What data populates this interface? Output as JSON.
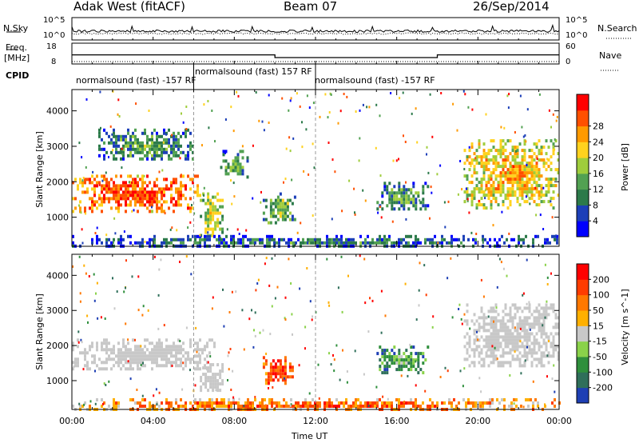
{
  "header": {
    "station": "Adak West (fitACF)",
    "beam": "Beam 07",
    "date": "26/Sep/2014"
  },
  "top_panel": {
    "left_label": "N.Sky",
    "right_label": "N.Search",
    "left_ticks": [
      "10^5",
      "10^0"
    ],
    "right_ticks": [
      "10^5",
      "10^0"
    ]
  },
  "freq_panel": {
    "left_label_1": "Freq.",
    "left_label_2": "[MHz]",
    "left_ticks": [
      "18",
      "8"
    ],
    "right_label": "Nave",
    "right_ticks": [
      "60",
      "0"
    ],
    "cpid_label": "CPID",
    "cpid_segments": [
      {
        "label": "normalsound (fast) -157 RF",
        "start": 0,
        "end": 6
      },
      {
        "label": "normalsound (fast) 157 RF",
        "start": 6,
        "end": 12
      },
      {
        "label": "normalsound (fast) -157 RF",
        "start": 12,
        "end": 24
      }
    ],
    "freq_series": {
      "x": [
        0,
        10,
        10,
        18,
        18,
        24
      ],
      "y": [
        12.2,
        12.2,
        10.5,
        10.5,
        12.2,
        12.2
      ]
    }
  },
  "chart_data": [
    {
      "type": "heatmap",
      "name": "power",
      "ylabel": "Slant Range [km]",
      "xlim": [
        0,
        24
      ],
      "ylim": [
        180,
        4600
      ],
      "yticks": [
        "1000",
        "2000",
        "3000",
        "4000"
      ],
      "colorbar_label": "Power [dB]",
      "colorbar_ticks": [
        "4",
        "8",
        "12",
        "16",
        "20",
        "24",
        "28"
      ],
      "colors": [
        "#0000ff",
        "#1c3fb8",
        "#2c7a4a",
        "#52a152",
        "#9fcd3c",
        "#ffd21e",
        "#ff9a00",
        "#ff5000",
        "#ff0000"
      ],
      "regions": [
        {
          "x0": 0,
          "x1": 6.3,
          "y0": 1200,
          "y1": 2200,
          "level": 0.8
        },
        {
          "x0": 6.3,
          "x1": 7.4,
          "y0": 500,
          "y1": 1700,
          "level": 0.5
        },
        {
          "x0": 7.3,
          "x1": 8.6,
          "y0": 2100,
          "y1": 2900,
          "level": 0.35
        },
        {
          "x0": 1.3,
          "x1": 6,
          "y0": 2600,
          "y1": 3500,
          "level": 0.3
        },
        {
          "x0": 9.4,
          "x1": 11,
          "y0": 800,
          "y1": 1700,
          "level": 0.4
        },
        {
          "x0": 15,
          "x1": 17.5,
          "y0": 1200,
          "y1": 2000,
          "level": 0.3
        },
        {
          "x0": 19.3,
          "x1": 24,
          "y0": 1300,
          "y1": 3200,
          "level": 0.6
        },
        {
          "x0": 0,
          "x1": 24,
          "y0": 180,
          "y1": 500,
          "level": 0.2
        }
      ]
    },
    {
      "type": "heatmap",
      "name": "velocity",
      "xlabel": "Time UT",
      "ylabel": "Slant Range [km]",
      "xlim": [
        0,
        24
      ],
      "ylim": [
        180,
        4600
      ],
      "xticks": [
        "00:00",
        "04:00",
        "08:00",
        "12:00",
        "16:00",
        "20:00",
        "00:00"
      ],
      "yticks": [
        "1000",
        "2000",
        "3000",
        "4000"
      ],
      "colorbar_label": "Velocity [m s^-1]",
      "colorbar_ticks": [
        "200",
        "100",
        "50",
        "15",
        "-15",
        "-50",
        "-100",
        "-200"
      ],
      "colors": [
        "#1e3fb4",
        "#2f6f5a",
        "#2f8f3c",
        "#8ad24a",
        "#c8c8c8",
        "#ffb000",
        "#ff7800",
        "#ff3c00",
        "#ff0000"
      ],
      "regions": [
        {
          "x0": 0,
          "x1": 7,
          "y0": 1300,
          "y1": 2200,
          "level": 0.5
        },
        {
          "x0": 6.3,
          "x1": 7.4,
          "y0": 700,
          "y1": 1500,
          "level": 0.5
        },
        {
          "x0": 9.4,
          "x1": 11,
          "y0": 900,
          "y1": 1700,
          "level": 0.8
        },
        {
          "x0": 15,
          "x1": 17.5,
          "y0": 1200,
          "y1": 2000,
          "level": 0.25
        },
        {
          "x0": 19.3,
          "x1": 24,
          "y0": 1400,
          "y1": 3200,
          "level": 0.5
        },
        {
          "x0": 0,
          "x1": 24,
          "y0": 180,
          "y1": 500,
          "level": 0.7
        }
      ]
    }
  ]
}
